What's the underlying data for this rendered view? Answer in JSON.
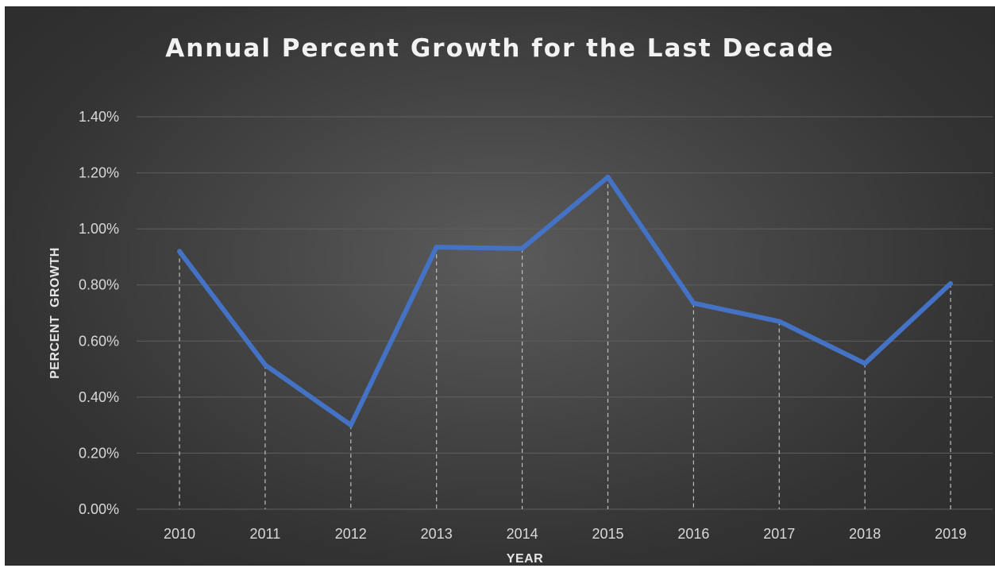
{
  "chart_data": {
    "type": "line",
    "title": "Annual Percent Growth for the Last Decade",
    "xlabel": "YEAR",
    "ylabel": "PERCENT  GROWTH",
    "categories": [
      "2010",
      "2011",
      "2012",
      "2013",
      "2014",
      "2015",
      "2016",
      "2017",
      "2018",
      "2019"
    ],
    "series": [
      {
        "values": [
          0.92,
          0.515,
          0.3,
          0.935,
          0.93,
          1.185,
          0.735,
          0.67,
          0.52,
          0.805
        ]
      }
    ],
    "ylim": [
      0,
      1.4
    ],
    "yticks": [
      "0.00%",
      "0.20%",
      "0.40%",
      "0.60%",
      "0.80%",
      "1.00%",
      "1.20%",
      "1.40%"
    ],
    "grid": true,
    "drop_lines": true,
    "colors": {
      "line": "#4472C4",
      "grid": "#5f5f5f",
      "drop_line": "#bfbfbf",
      "background": "#404040"
    }
  }
}
